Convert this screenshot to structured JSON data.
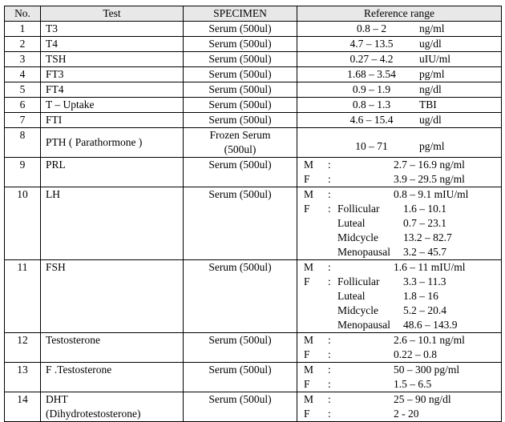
{
  "headers": {
    "no": "No.",
    "test": "Test",
    "specimen": "SPECIMEN",
    "reference": "Reference range"
  },
  "rows": [
    {
      "no": "1",
      "test": [
        "T3"
      ],
      "specimen": [
        "Serum (500ul)"
      ],
      "range": "0.8 – 2",
      "unit": "ng/ml"
    },
    {
      "no": "2",
      "test": [
        "T4"
      ],
      "specimen": [
        "Serum (500ul)"
      ],
      "range": "4.7 – 13.5",
      "unit": "ug/dl"
    },
    {
      "no": "3",
      "test": [
        "TSH"
      ],
      "specimen": [
        "Serum (500ul)"
      ],
      "range": "0.27 – 4.2",
      "unit": "uIU/ml"
    },
    {
      "no": "4",
      "test": [
        "FT3"
      ],
      "specimen": [
        "Serum (500ul)"
      ],
      "range": "1.68 – 3.54",
      "unit": "pg/ml"
    },
    {
      "no": "5",
      "test": [
        "FT4"
      ],
      "specimen": [
        "Serum (500ul)"
      ],
      "range": "0.9 – 1.9",
      "unit": "ng/dl"
    },
    {
      "no": "6",
      "test": [
        "T – Uptake"
      ],
      "specimen": [
        "Serum (500ul)"
      ],
      "range": "0.8 – 1.3",
      "unit": "TBI"
    },
    {
      "no": "7",
      "test": [
        "FTI"
      ],
      "specimen": [
        "Serum (500ul)"
      ],
      "range": "4.6 – 15.4",
      "unit": "ug/dl"
    },
    {
      "no": "8",
      "test": [
        "PTH ( Parathormone )"
      ],
      "specimen": [
        "Frozen Serum",
        "(500ul)"
      ],
      "range": "10 – 71",
      "unit": "pg/ml"
    },
    {
      "no": "9",
      "test": [
        "PRL"
      ],
      "specimen": [
        "Serum (500ul)"
      ],
      "lines": [
        {
          "sex": "M",
          "colon": ":",
          "phase": "",
          "value": "2.7 – 16.9 ng/ml"
        },
        {
          "sex": "F",
          "colon": ":",
          "phase": "",
          "value": "3.9 – 29.5  ng/ml"
        }
      ]
    },
    {
      "no": "10",
      "test": [
        "LH"
      ],
      "specimen": [
        "Serum (500ul)"
      ],
      "lines": [
        {
          "sex": "M",
          "colon": ":",
          "phase": "",
          "value": "0.8 – 9.1 mIU/ml"
        },
        {
          "sex": "F",
          "colon": ":",
          "phase": "Follicular",
          "value": "1.6 – 10.1"
        },
        {
          "sex": "",
          "colon": "",
          "phase": "Luteal",
          "value": "0.7 – 23.1"
        },
        {
          "sex": "",
          "colon": "",
          "phase": "Midcycle",
          "value": "13.2 – 82.7"
        },
        {
          "sex": "",
          "colon": "",
          "phase": "Menopausal",
          "value": "3.2 – 45.7"
        }
      ]
    },
    {
      "no": "11",
      "test": [
        "FSH"
      ],
      "specimen": [
        "Serum (500ul)"
      ],
      "lines": [
        {
          "sex": "M",
          "colon": ":",
          "phase": "",
          "value": "1.6 – 11  mIU/ml"
        },
        {
          "sex": "F",
          "colon": ":",
          "phase": "Follicular",
          "value": "3.3 – 11.3"
        },
        {
          "sex": "",
          "colon": "",
          "phase": "Luteal",
          "value": "1.8 – 16"
        },
        {
          "sex": "",
          "colon": "",
          "phase": "Midcycle",
          "value": "5.2 – 20.4"
        },
        {
          "sex": "",
          "colon": "",
          "phase": "Menopausal",
          "value": "48.6 – 143.9"
        }
      ]
    },
    {
      "no": "12",
      "test": [
        "Testosterone"
      ],
      "specimen": [
        "Serum (500ul)"
      ],
      "lines": [
        {
          "sex": "M",
          "colon": ":",
          "phase": "",
          "value": "2.6 – 10.1  ng/ml"
        },
        {
          "sex": "F",
          "colon": ":",
          "phase": "",
          "value": "0.22 – 0.8"
        }
      ]
    },
    {
      "no": "13",
      "test": [
        "F .Testosterone"
      ],
      "specimen": [
        "Serum (500ul)"
      ],
      "lines": [
        {
          "sex": "M",
          "colon": ":",
          "phase": "",
          "value": "50 – 300  pg/ml"
        },
        {
          "sex": "F",
          "colon": ":",
          "phase": "",
          "value": "1.5 – 6.5"
        }
      ]
    },
    {
      "no": "14",
      "test": [
        "DHT",
        "(Dihydrotestosterone)"
      ],
      "specimen": [
        "Serum (500ul)"
      ],
      "lines": [
        {
          "sex": "M",
          "colon": ":",
          "phase": "",
          "value": "25 – 90  ng/dl"
        },
        {
          "sex": "F",
          "colon": ":",
          "phase": "",
          "value": "2 - 20"
        }
      ]
    }
  ]
}
